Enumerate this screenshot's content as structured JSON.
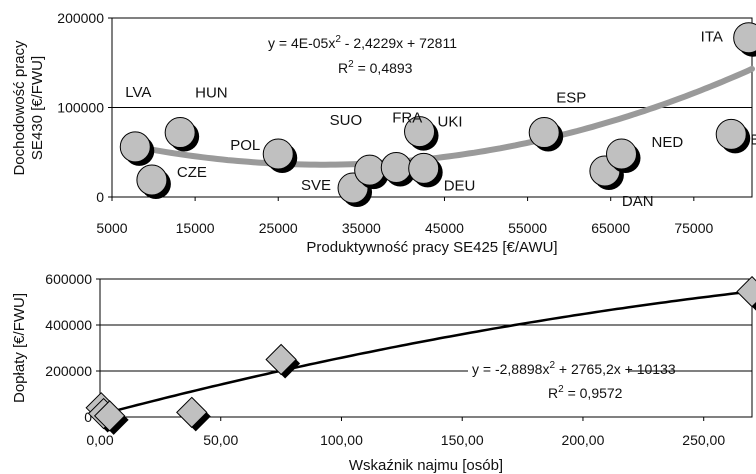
{
  "chart_data": [
    {
      "type": "scatter",
      "xlabel": "Produktywność pracy SE425 [€/AWU]",
      "ylabel": [
        "Dochodowość pracy",
        "SE430 [€/FWU]"
      ],
      "xlim": [
        5000,
        82000
      ],
      "ylim": [
        0,
        200000
      ],
      "xticks": [
        5000,
        15000,
        25000,
        35000,
        45000,
        55000,
        65000,
        75000
      ],
      "xtick_labels": [
        "5000",
        "15000",
        "25000",
        "35000",
        "45000",
        "55000",
        "65000",
        "75000"
      ],
      "yticks": [
        0,
        100000,
        200000
      ],
      "ytick_labels": [
        "0",
        "100000",
        "200000"
      ],
      "grid": "horizontal",
      "marker": "circle",
      "colors": {
        "marker": "#c0c0c0",
        "shadow": "#000000",
        "trend": "#9a9a9a"
      },
      "points": [
        {
          "label": "LVA",
          "x": 7800,
          "y": 56000
        },
        {
          "label": "CZE",
          "x": 9800,
          "y": 19000
        },
        {
          "label": "HUN",
          "x": 13200,
          "y": 72000
        },
        {
          "label": "POL",
          "x": 25000,
          "y": 48000
        },
        {
          "label": "SVE",
          "x": 34000,
          "y": 10000
        },
        {
          "label": "SUO",
          "x": 36000,
          "y": 30000
        },
        {
          "label": "FRA",
          "x": 39200,
          "y": 33000
        },
        {
          "label": "UKI",
          "x": 42000,
          "y": 73000
        },
        {
          "label": "DEU",
          "x": 42500,
          "y": 32000
        },
        {
          "label": "ESP",
          "x": 57000,
          "y": 72000
        },
        {
          "label": "DAN",
          "x": 64300,
          "y": 29000
        },
        {
          "label": "NED",
          "x": 66300,
          "y": 48000
        },
        {
          "label": "BEL",
          "x": 79500,
          "y": 70000
        },
        {
          "label": "ITA",
          "x": 81600,
          "y": 178000
        }
      ],
      "trendline": {
        "type": "polynomial",
        "a": 4e-05,
        "b": -2.4229,
        "c": 72811
      },
      "equation": "y = 4E-05x",
      "equation_suffix": " - 2,4229x + 72811",
      "exponent": "2",
      "r2_label": "R",
      "r2_value": " = 0,4893"
    },
    {
      "type": "scatter",
      "xlabel": "Wskaźnik najmu [osób]",
      "ylabel": "Dopłaty [€/FWU]",
      "xlim": [
        0,
        270
      ],
      "ylim": [
        0,
        600000
      ],
      "xticks": [
        0,
        50,
        100,
        150,
        200,
        250
      ],
      "xtick_labels": [
        "0,00",
        "50,00",
        "100,00",
        "150,00",
        "200,00",
        "250,00"
      ],
      "yticks": [
        0,
        200000,
        400000,
        600000
      ],
      "ytick_labels": [
        "0",
        "200000",
        "400000",
        "600000"
      ],
      "grid": "horizontal",
      "marker": "diamond",
      "colors": {
        "marker": "#c0c0c0",
        "shadow": "#000000",
        "trend": "#000000"
      },
      "points": [
        {
          "x": 0.5,
          "y": 40000
        },
        {
          "x": 1.5,
          "y": 15000
        },
        {
          "x": 4,
          "y": 5000
        },
        {
          "x": 38,
          "y": 20000
        },
        {
          "x": 75,
          "y": 250000
        },
        {
          "x": 270,
          "y": 545000
        }
      ],
      "trendline": {
        "type": "polynomial",
        "a": -2.8898,
        "b": 2765.2,
        "c": 10133
      },
      "equation": "y = -2,8898x",
      "equation_suffix": " + 2765,2x + 10133",
      "exponent": "2",
      "r2_label": "R",
      "r2_value": " = 0,9572"
    }
  ]
}
